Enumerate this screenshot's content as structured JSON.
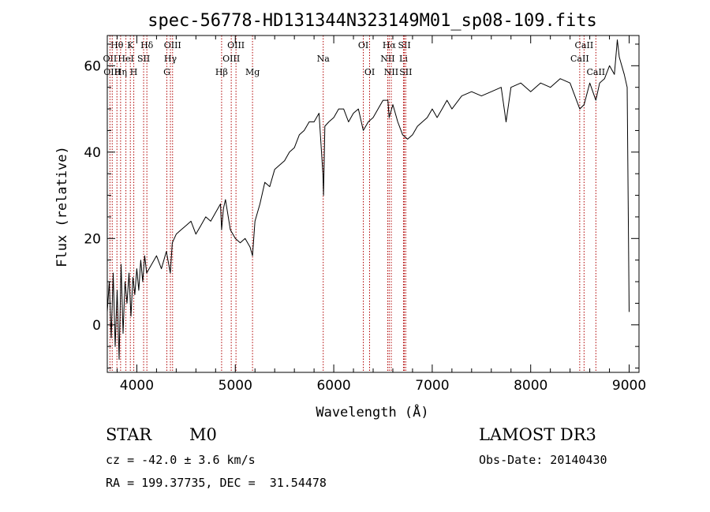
{
  "chart_data": {
    "type": "line",
    "title": "spec-56778-HD131344N323149M01_sp08-109.fits",
    "xlabel": "Wavelength (Å)",
    "ylabel": "Flux (relative)",
    "xlim": [
      3700,
      9100
    ],
    "ylim": [
      -11,
      67
    ],
    "xticks": [
      4000,
      5000,
      6000,
      7000,
      8000,
      9000
    ],
    "yticks": [
      0,
      20,
      40,
      60
    ],
    "series": [
      {
        "color": "#000000",
        "x": [
          3700,
          3720,
          3740,
          3760,
          3780,
          3800,
          3820,
          3840,
          3860,
          3880,
          3900,
          3920,
          3940,
          3960,
          3980,
          4000,
          4020,
          4040,
          4060,
          4080,
          4100,
          4150,
          4200,
          4250,
          4300,
          4340,
          4360,
          4400,
          4450,
          4500,
          4550,
          4600,
          4650,
          4700,
          4750,
          4800,
          4850,
          4861,
          4880,
          4900,
          4950,
          5000,
          5050,
          5100,
          5150,
          5175,
          5200,
          5250,
          5300,
          5350,
          5400,
          5450,
          5500,
          5550,
          5600,
          5650,
          5700,
          5750,
          5800,
          5850,
          5890,
          5896,
          5910,
          5950,
          6000,
          6050,
          6100,
          6150,
          6200,
          6250,
          6300,
          6350,
          6400,
          6450,
          6500,
          6550,
          6563,
          6600,
          6650,
          6700,
          6750,
          6800,
          6850,
          6900,
          6950,
          7000,
          7050,
          7100,
          7150,
          7200,
          7300,
          7400,
          7500,
          7600,
          7700,
          7750,
          7800,
          7900,
          8000,
          8100,
          8200,
          8300,
          8400,
          8498,
          8542,
          8600,
          8662,
          8700,
          8750,
          8800,
          8850,
          8880,
          8900,
          8950,
          8980,
          9000
        ],
        "values": [
          3,
          10,
          -3,
          12,
          -5,
          8,
          -8,
          14,
          -2,
          10,
          5,
          12,
          2,
          11,
          7,
          13,
          8,
          15,
          10,
          16,
          12,
          14,
          16,
          13,
          17,
          12,
          19,
          21,
          22,
          23,
          24,
          21,
          23,
          25,
          24,
          26,
          28,
          22,
          27,
          29,
          22,
          20,
          19,
          20,
          18,
          16,
          24,
          28,
          33,
          32,
          36,
          37,
          38,
          40,
          41,
          44,
          45,
          47,
          47,
          49,
          35,
          30,
          46,
          47,
          48,
          50,
          50,
          47,
          49,
          50,
          45,
          47,
          48,
          50,
          52,
          52,
          48,
          51,
          47,
          44,
          43,
          44,
          46,
          47,
          48,
          50,
          48,
          50,
          52,
          50,
          53,
          54,
          53,
          54,
          55,
          47,
          55,
          56,
          54,
          56,
          55,
          57,
          56,
          50,
          51,
          56,
          52,
          56,
          57,
          60,
          58,
          66,
          62,
          58,
          55,
          3
        ]
      }
    ],
    "spectral_lines": [
      {
        "label": "Hθ",
        "x": 3798,
        "row": 1
      },
      {
        "label": "OII",
        "x": 3727,
        "row": 2
      },
      {
        "label": "OIII",
        "x": 3750,
        "row": 3
      },
      {
        "label": "HeI",
        "x": 3889,
        "row": 2
      },
      {
        "label": "K",
        "x": 3934,
        "row": 1
      },
      {
        "label": "Hη",
        "x": 3835,
        "row": 3
      },
      {
        "label": "H",
        "x": 3969,
        "row": 3
      },
      {
        "label": "Hδ",
        "x": 4102,
        "row": 1
      },
      {
        "label": "SII",
        "x": 4069,
        "row": 2
      },
      {
        "label": "OIII",
        "x": 4363,
        "row": 1
      },
      {
        "label": "Hγ",
        "x": 4341,
        "row": 2
      },
      {
        "label": "G",
        "x": 4305,
        "row": 3
      },
      {
        "label": "OIII",
        "x": 5007,
        "row": 1
      },
      {
        "label": "OIII",
        "x": 4959,
        "row": 2
      },
      {
        "label": "Hβ",
        "x": 4861,
        "row": 3
      },
      {
        "label": "Mg",
        "x": 5175,
        "row": 3
      },
      {
        "label": "Na",
        "x": 5893,
        "row": 2
      },
      {
        "label": "OI",
        "x": 6300,
        "row": 1
      },
      {
        "label": "OI",
        "x": 6364,
        "row": 3
      },
      {
        "label": "Hα",
        "x": 6563,
        "row": 1
      },
      {
        "label": "SII",
        "x": 6717,
        "row": 1
      },
      {
        "label": "NII",
        "x": 6548,
        "row": 2
      },
      {
        "label": "Li",
        "x": 6708,
        "row": 2
      },
      {
        "label": "NII",
        "x": 6584,
        "row": 3
      },
      {
        "label": "SII",
        "x": 6731,
        "row": 3
      },
      {
        "label": "CaII",
        "x": 8542,
        "row": 1
      },
      {
        "label": "CaII",
        "x": 8498,
        "row": 2
      },
      {
        "label": "CaII",
        "x": 8662,
        "row": 3
      }
    ]
  },
  "info": {
    "object_class": "STAR",
    "subclass": "M0",
    "survey": "LAMOST DR3",
    "redshift": "cz = -42.0 ± 3.6 km/s",
    "obs_date": "Obs-Date: 20140430",
    "coords": "RA = 199.37735, DEC =  31.54478"
  }
}
